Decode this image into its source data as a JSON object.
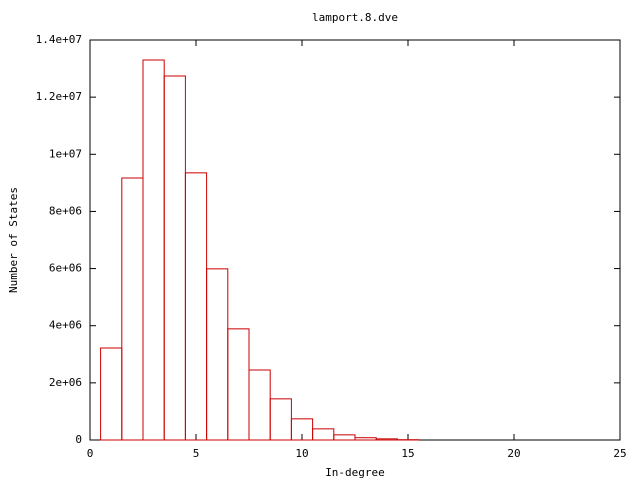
{
  "chart_data": {
    "type": "histogram",
    "title": "lamport.8.dve",
    "x_label": "In-degree",
    "y_label": "Number of States",
    "bins": [
      0.5,
      1.5,
      2.5,
      3.5,
      4.5,
      5.5,
      6.5,
      7.5,
      8.5,
      9.5,
      10.5,
      11.5,
      12.5,
      13.5,
      14.5,
      15.5
    ],
    "values": [
      3220000,
      9170000,
      13300000,
      12740000,
      9350000,
      5990000,
      3890000,
      2450000,
      1440000,
      740000,
      390000,
      180000,
      80000,
      40000,
      10000
    ],
    "color": "#cc0000",
    "xlim": [
      0,
      25
    ],
    "xticks": [
      0,
      5,
      10,
      15,
      20,
      25
    ],
    "ylim": [
      0,
      14000000
    ],
    "yticks": [
      0,
      {
        "value": 2000000,
        "label": "2e+06"
      },
      {
        "value": 4000000,
        "label": "4e+06"
      },
      {
        "value": 6000000,
        "label": "6e+06"
      },
      {
        "value": 8000000,
        "label": "8e+06"
      },
      {
        "value": 10000000,
        "label": "1e+07"
      },
      {
        "value": 12000000,
        "label": "1.2e+07"
      },
      {
        "value": 14000000,
        "label": "1.4e+07"
      }
    ]
  }
}
